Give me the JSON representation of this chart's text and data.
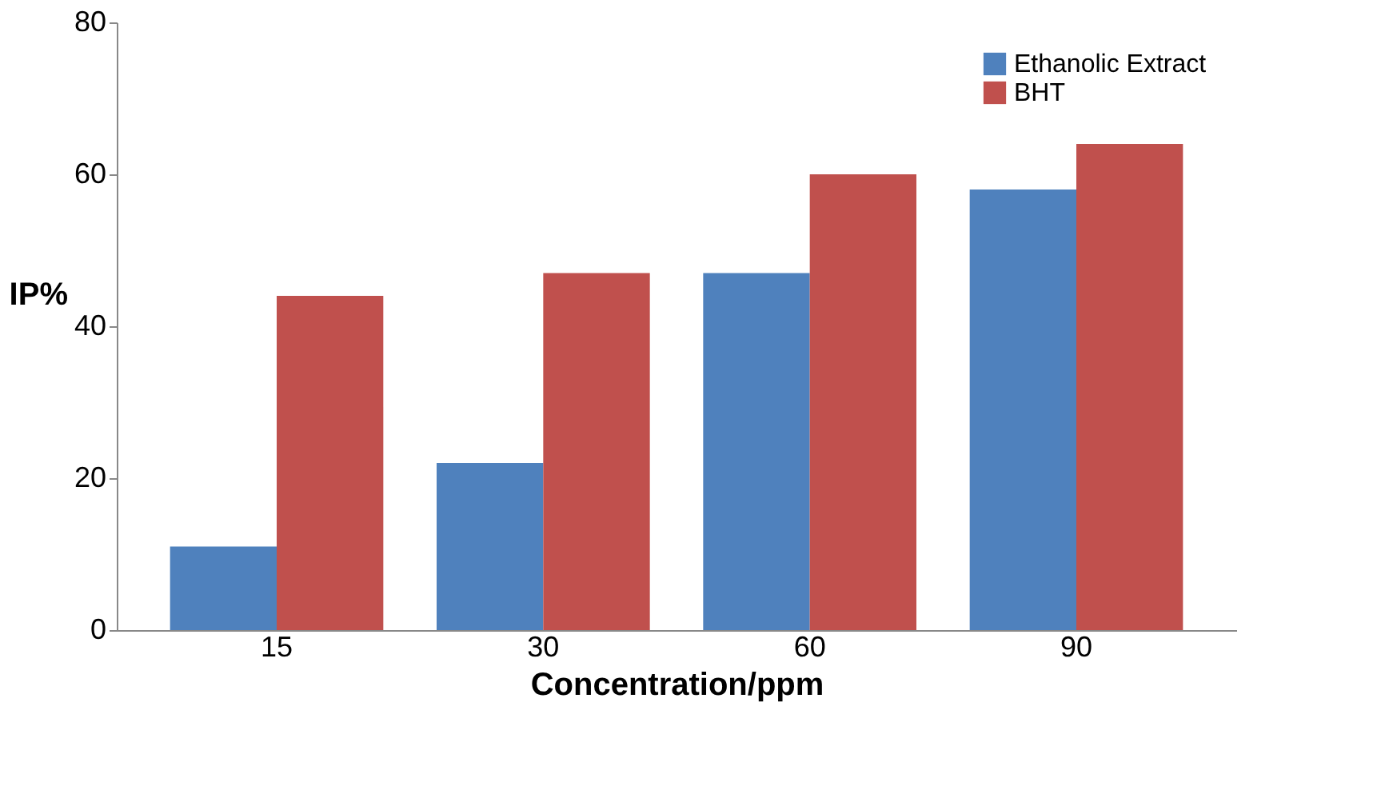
{
  "chart_data": {
    "type": "bar",
    "xlabel": "Concentration/ppm",
    "ylabel": "IP%",
    "categories": [
      "15",
      "30",
      "60",
      "90"
    ],
    "series": [
      {
        "name": "Ethanolic Extract",
        "color": "#4f81bd",
        "values": [
          11,
          22,
          47,
          58
        ]
      },
      {
        "name": "BHT",
        "color": "#c0504d",
        "values": [
          44,
          47,
          60,
          64
        ]
      }
    ],
    "ylim": [
      0,
      80
    ],
    "yticks": [
      0,
      20,
      40,
      60,
      80
    ],
    "grid": false,
    "legend": "top right"
  }
}
